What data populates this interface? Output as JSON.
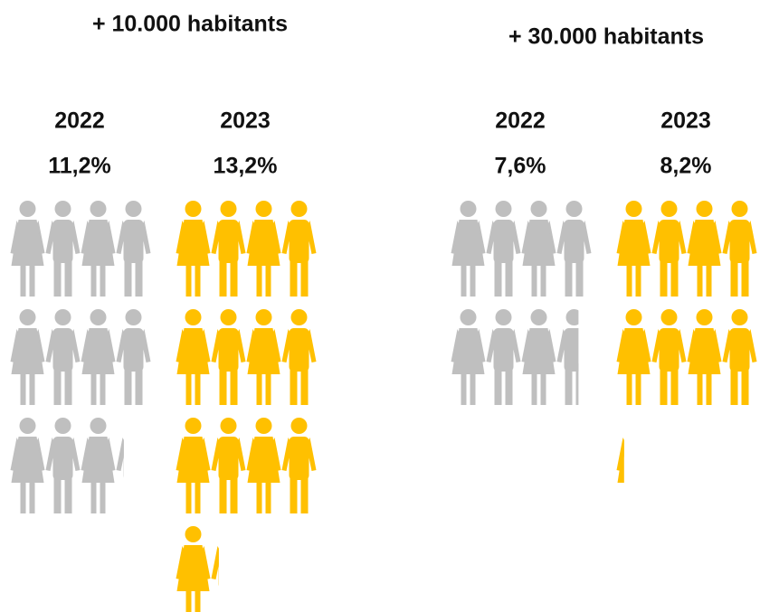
{
  "chart_data": [
    {
      "type": "pictogram",
      "title": "+ 10.000 habitants",
      "categories": [
        "2022",
        "2023"
      ],
      "values": [
        11.2,
        13.2
      ],
      "value_labels": [
        "11,2%",
        "13,2%"
      ],
      "colors": [
        "#bfbfbf",
        "#ffc000"
      ]
    },
    {
      "type": "pictogram",
      "title": "+ 30.000 habitants",
      "categories": [
        "2022",
        "2023"
      ],
      "values": [
        7.6,
        8.2
      ],
      "value_labels": [
        "7,6%",
        "8,2%"
      ],
      "colors": [
        "#bfbfbf",
        "#ffc000"
      ]
    }
  ]
}
